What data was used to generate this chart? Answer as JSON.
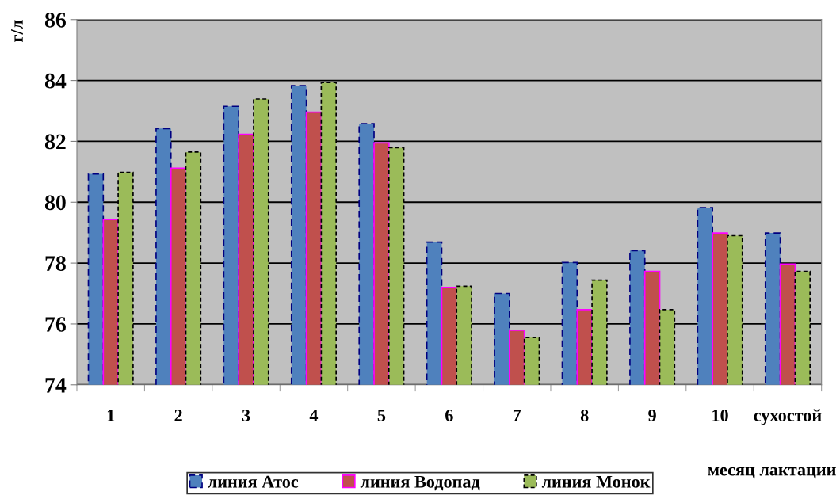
{
  "chart_data": {
    "type": "bar",
    "ylabel": "г/л",
    "xlabel": "месяц лактации",
    "categories": [
      "1",
      "2",
      "3",
      "4",
      "5",
      "6",
      "7",
      "8",
      "9",
      "10",
      "сухостой"
    ],
    "series": [
      {
        "name": "линия Атос",
        "color": "#4f81bd",
        "line_style": "dashed",
        "values": [
          80.93,
          82.42,
          83.15,
          83.83,
          82.58,
          78.69,
          77.0,
          78.02,
          78.41,
          79.82,
          78.99
        ]
      },
      {
        "name": "линия Водопад",
        "color": "#c0504d",
        "line_style": "solid",
        "values": [
          79.43,
          81.12,
          82.23,
          82.96,
          81.95,
          77.2,
          75.79,
          76.47,
          77.73,
          78.99,
          77.97
        ]
      },
      {
        "name": "линия Монок",
        "color": "#9bbb59",
        "line_style": "dotted",
        "values": [
          80.98,
          81.65,
          83.39,
          83.93,
          81.79,
          77.24,
          75.55,
          77.44,
          76.47,
          78.9,
          77.73
        ]
      }
    ],
    "ylim": [
      74,
      86
    ],
    "yticks": [
      74,
      76,
      78,
      80,
      82,
      84,
      86
    ],
    "grid": "y",
    "legend": "bottom"
  }
}
